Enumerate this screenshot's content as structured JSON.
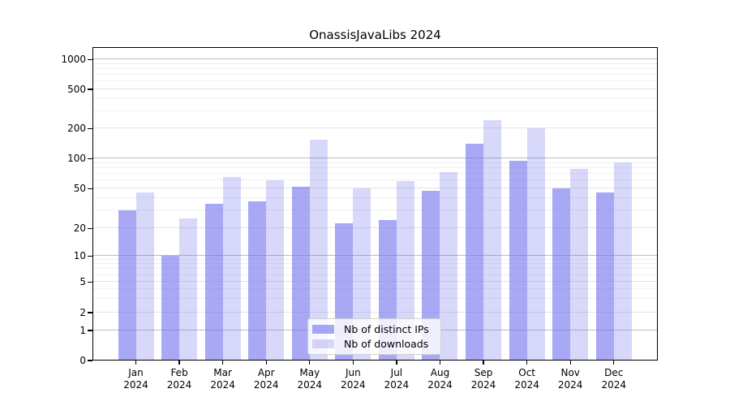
{
  "title": "OnassisJavaLibs 2024",
  "chart_data": {
    "type": "bar",
    "title": "OnassisJavaLibs 2024",
    "categories": [
      "Jan",
      "Feb",
      "Mar",
      "Apr",
      "May",
      "Jun",
      "Jul",
      "Aug",
      "Sep",
      "Oct",
      "Nov",
      "Dec"
    ],
    "year_label": "2024",
    "series": [
      {
        "name": "Nb of distinct IPs",
        "color": "rgba(110,110,238,0.60)",
        "values": [
          30,
          10,
          35,
          37,
          51,
          22,
          24,
          47,
          140,
          93,
          50,
          45
        ]
      },
      {
        "name": "Nb of downloads",
        "color": "rgba(110,110,238,0.27)",
        "values": [
          45,
          25,
          64,
          60,
          152,
          50,
          59,
          72,
          240,
          200,
          78,
          90
        ]
      }
    ],
    "xlabel": "",
    "ylabel": "",
    "y_scale": "symlog",
    "y_ticks": [
      0,
      1,
      2,
      5,
      10,
      20,
      50,
      100,
      200,
      500,
      1000
    ],
    "ylim": [
      0,
      1350
    ],
    "grid": true,
    "legend_position": "lower center"
  }
}
